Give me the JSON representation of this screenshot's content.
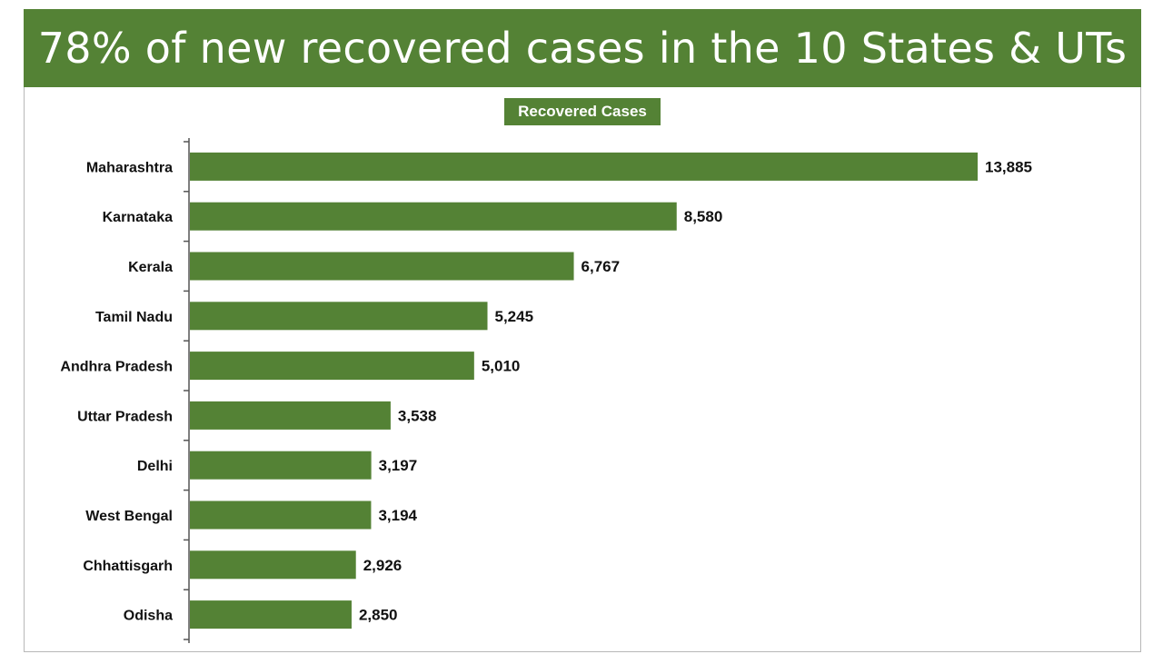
{
  "chart_data": {
    "type": "bar",
    "orientation": "horizontal",
    "title": "78% of new recovered cases in the 10 States & UTs",
    "legend": {
      "label": "Recovered Cases",
      "placement": "top-center"
    },
    "categories": [
      "Maharashtra",
      "Karnataka",
      "Kerala",
      "Tamil Nadu",
      "Andhra Pradesh",
      "Uttar Pradesh",
      "Delhi",
      "West Bengal",
      "Chhattisgarh",
      "Odisha"
    ],
    "series": [
      {
        "name": "Recovered Cases",
        "values": [
          13885,
          8580,
          6767,
          5245,
          5010,
          3538,
          3197,
          3194,
          2926,
          2850
        ],
        "value_labels": [
          "13,885",
          "8,580",
          "6,767",
          "5,245",
          "5,010",
          "3,538",
          "3,197",
          "3,194",
          "2,926",
          "2,850"
        ]
      }
    ],
    "xlim": [
      0,
      13885
    ],
    "grid": false,
    "bar_color": "#548235",
    "title_bar_color": "#548235"
  }
}
